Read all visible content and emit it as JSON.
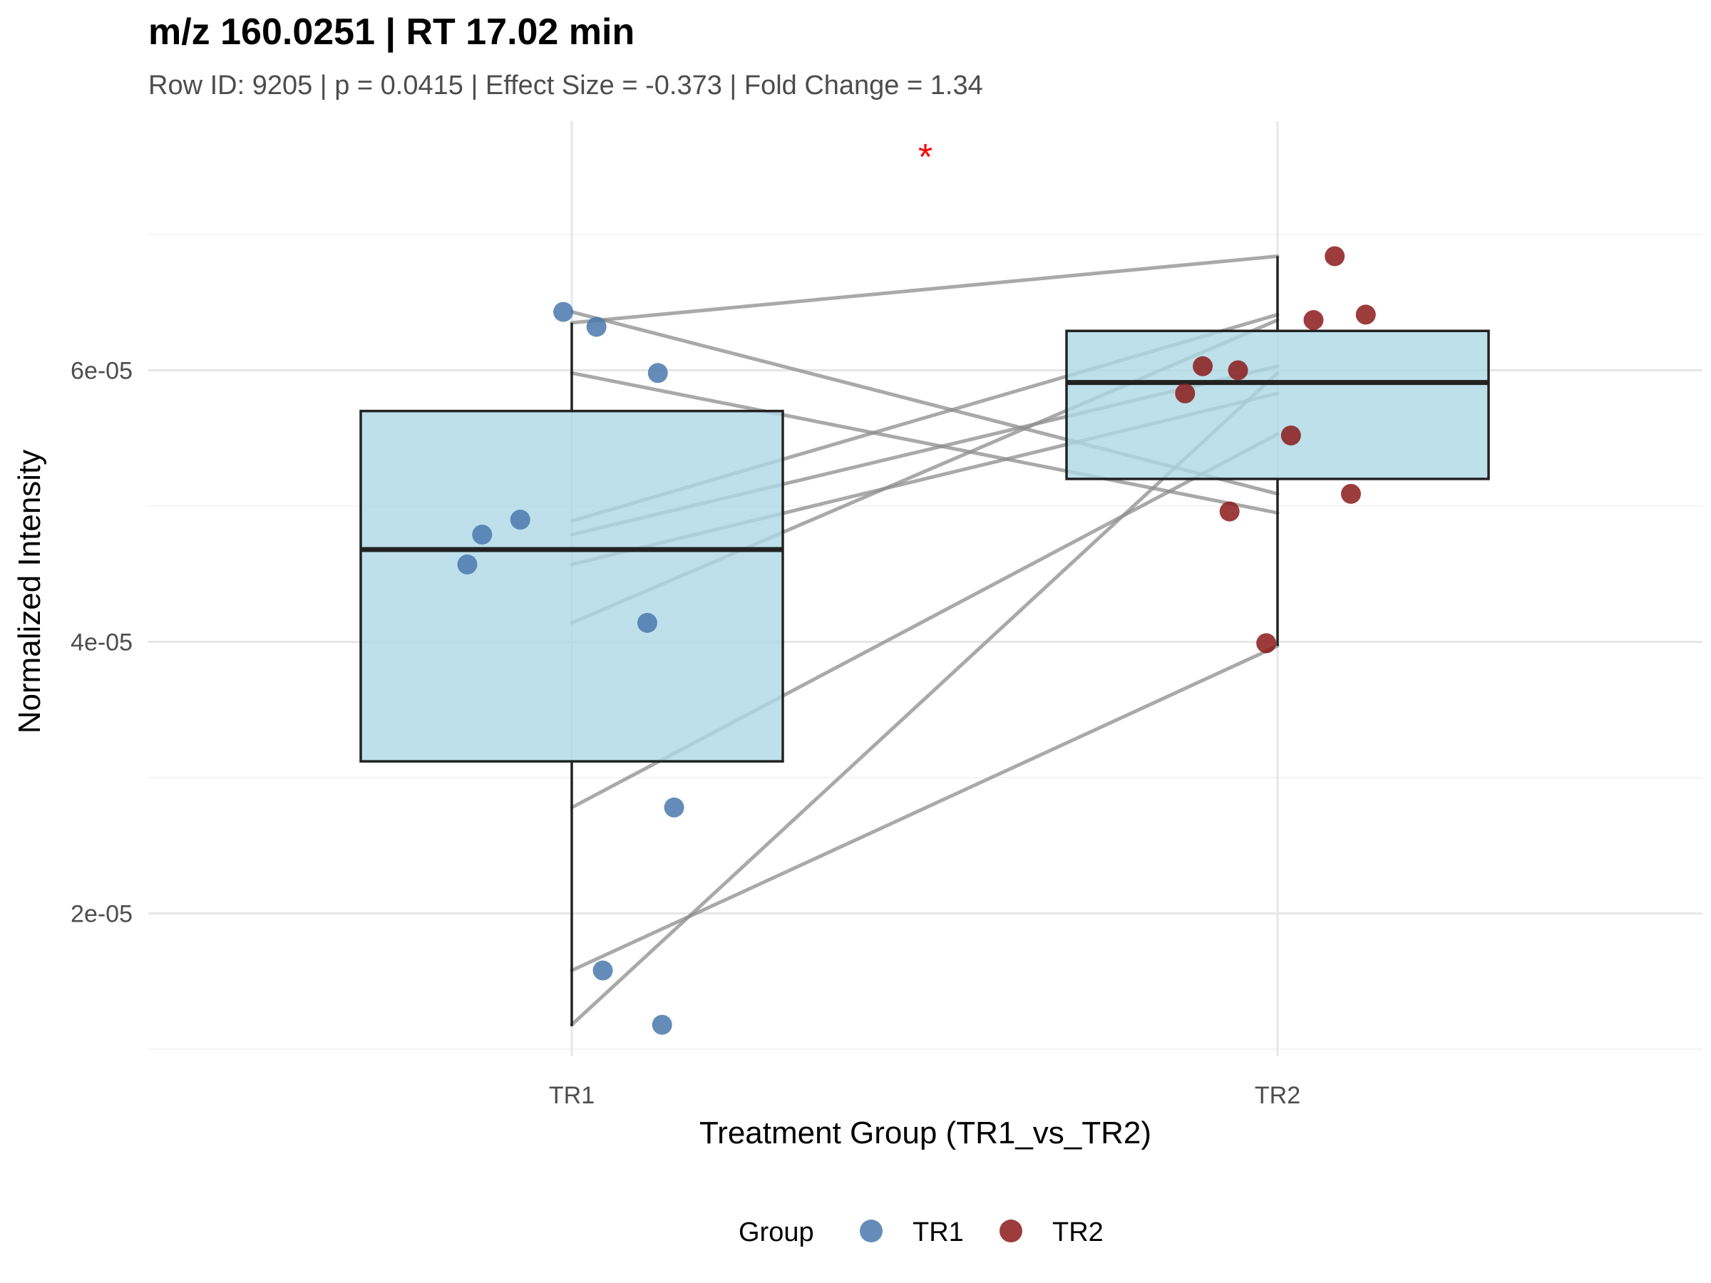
{
  "chart_data": {
    "type": "box",
    "title": "m/z 160.0251 | RT 17.02 min",
    "subtitle": "Row ID: 9205 | p = 0.0415 | Effect Size = -0.373 | Fold Change = 1.34",
    "xlabel": "Treatment Group (TR1_vs_TR2)",
    "ylabel": "Normalized Intensity",
    "categories": [
      "TR1",
      "TR2"
    ],
    "y_ticks": [
      {
        "value": 2e-05,
        "label": "2e-05"
      },
      {
        "value": 4e-05,
        "label": "4e-05"
      },
      {
        "value": 6e-05,
        "label": "6e-05"
      }
    ],
    "y_minor_ticks": [
      1e-05,
      3e-05,
      5e-05,
      7e-05
    ],
    "ylim": [
      9.5e-06,
      7.5e-05
    ],
    "significance": "*",
    "significance_color": "#ff0000",
    "box_fill": "#add8e6",
    "boxes": [
      {
        "group": "TR1",
        "q1": 3.12e-05,
        "median": 4.68e-05,
        "q3": 5.7e-05,
        "whisker_low": 1.17e-05,
        "whisker_high": 6.35e-05
      },
      {
        "group": "TR2",
        "q1": 5.2e-05,
        "median": 5.91e-05,
        "q3": 6.29e-05,
        "whisker_low": 3.97e-05,
        "whisker_high": 6.84e-05
      }
    ],
    "paired_lines": [
      {
        "tr1": 6.35e-05,
        "tr2": 6.84e-05
      },
      {
        "tr1": 6.43e-05,
        "tr2": 5.09e-05
      },
      {
        "tr1": 5.98e-05,
        "tr2": 4.95e-05
      },
      {
        "tr1": 4.89e-05,
        "tr2": 6.41e-05
      },
      {
        "tr1": 4.79e-05,
        "tr2": 6.03e-05
      },
      {
        "tr1": 4.57e-05,
        "tr2": 5.83e-05
      },
      {
        "tr1": 4.14e-05,
        "tr2": 6.37e-05
      },
      {
        "tr1": 2.78e-05,
        "tr2": 5.53e-05
      },
      {
        "tr1": 1.58e-05,
        "tr2": 3.97e-05
      },
      {
        "tr1": 1.18e-05,
        "tr2": 5.98e-05
      }
    ],
    "series": [
      {
        "name": "TR1",
        "color": "#4a78ad",
        "points": [
          {
            "x_offset": -0.012,
            "y": 6.43e-05
          },
          {
            "x_offset": 0.035,
            "y": 6.32e-05
          },
          {
            "x_offset": 0.122,
            "y": 5.98e-05
          },
          {
            "x_offset": -0.073,
            "y": 4.9e-05
          },
          {
            "x_offset": -0.127,
            "y": 4.79e-05
          },
          {
            "x_offset": -0.148,
            "y": 4.57e-05
          },
          {
            "x_offset": 0.107,
            "y": 4.14e-05
          },
          {
            "x_offset": 0.145,
            "y": 2.78e-05
          },
          {
            "x_offset": 0.044,
            "y": 1.58e-05
          },
          {
            "x_offset": 0.128,
            "y": 1.18e-05
          }
        ]
      },
      {
        "name": "TR2",
        "color": "#8b1a1a",
        "points": [
          {
            "x_offset": 0.081,
            "y": 6.84e-05
          },
          {
            "x_offset": 0.125,
            "y": 6.41e-05
          },
          {
            "x_offset": 0.051,
            "y": 6.37e-05
          },
          {
            "x_offset": -0.106,
            "y": 6.03e-05
          },
          {
            "x_offset": -0.056,
            "y": 6e-05
          },
          {
            "x_offset": -0.131,
            "y": 5.83e-05
          },
          {
            "x_offset": 0.019,
            "y": 5.52e-05
          },
          {
            "x_offset": 0.104,
            "y": 5.09e-05
          },
          {
            "x_offset": -0.068,
            "y": 4.96e-05
          },
          {
            "x_offset": -0.016,
            "y": 3.99e-05
          }
        ]
      }
    ],
    "legend": {
      "title": "Group",
      "position": "bottom",
      "items": [
        "TR1",
        "TR2"
      ]
    }
  }
}
